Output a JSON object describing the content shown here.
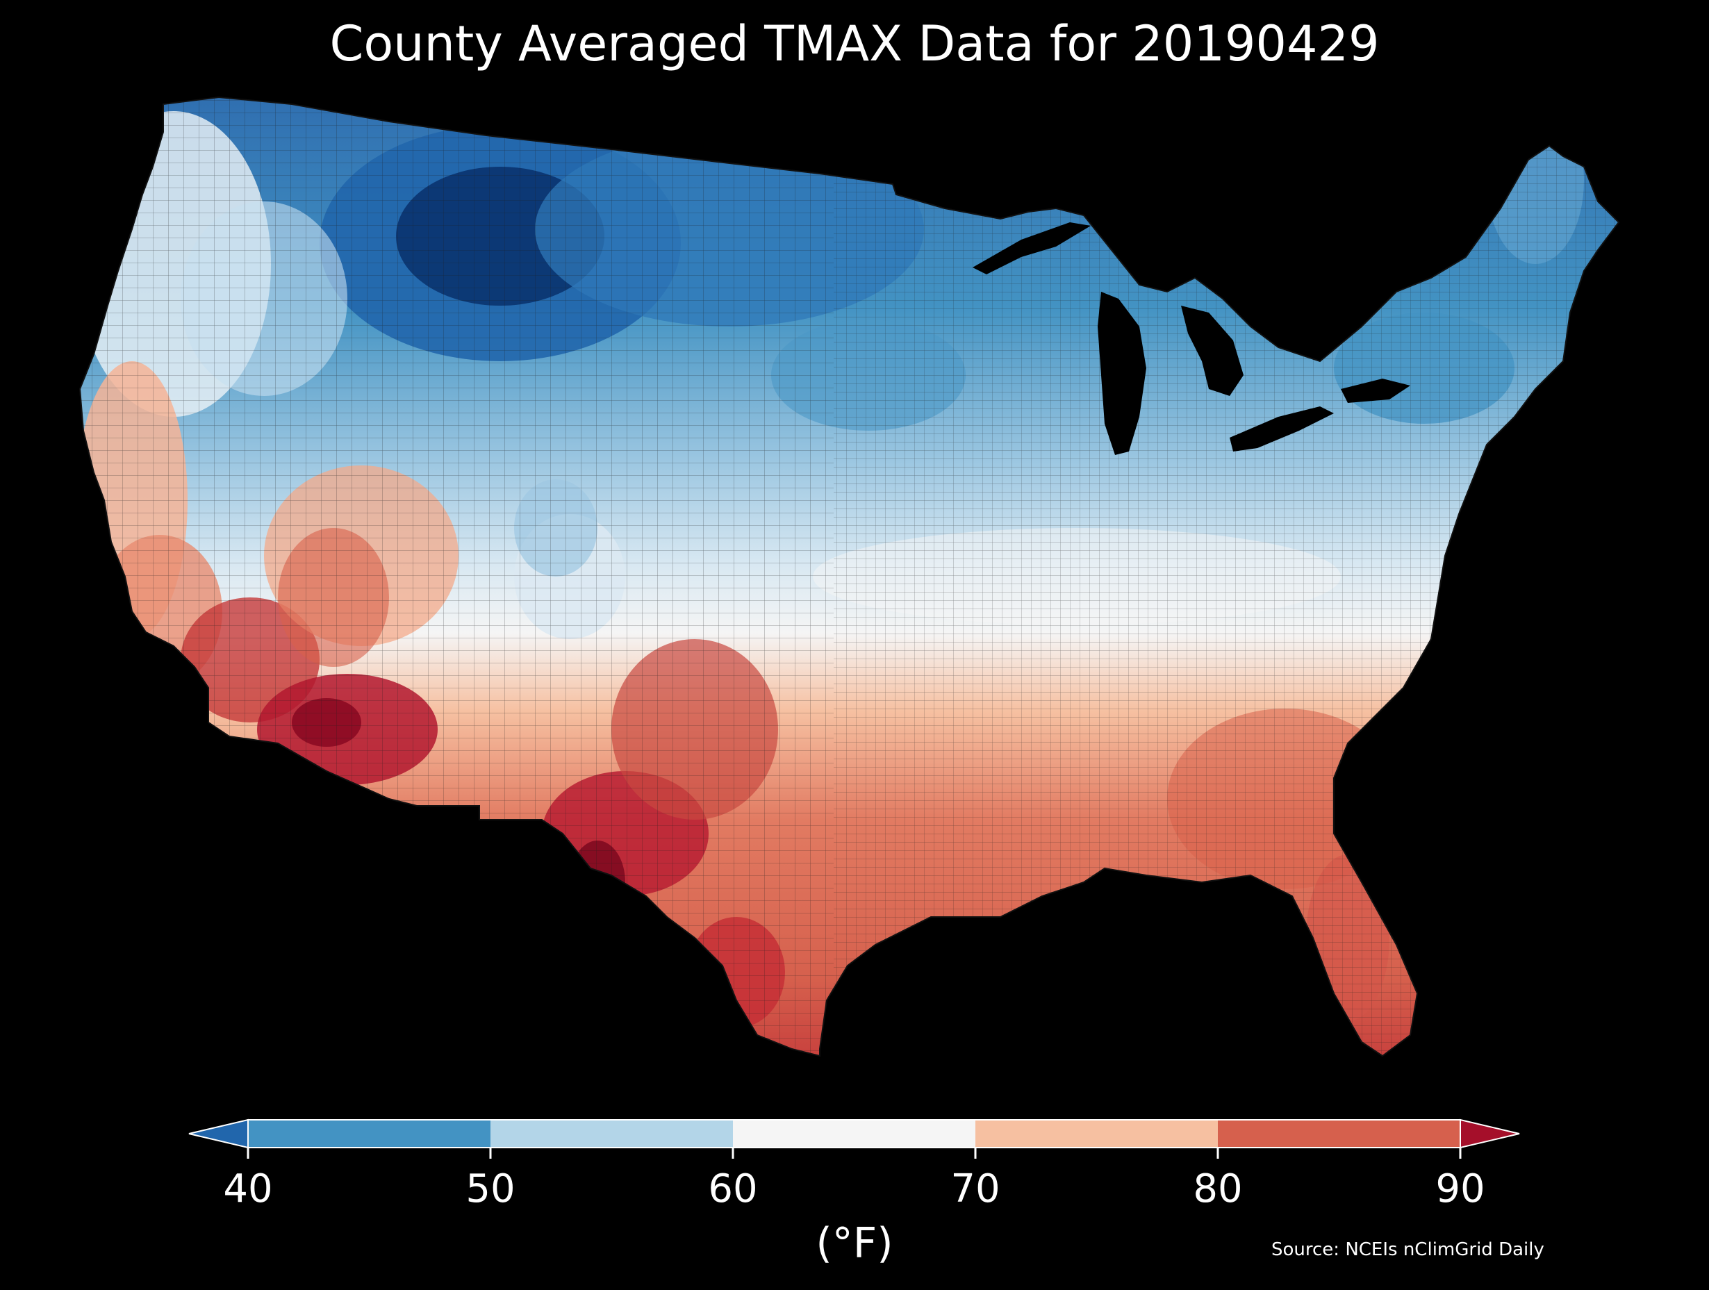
{
  "title": "County Averaged TMAX Data for 20190429",
  "source": "Source: NCEIs nClimGrid Daily",
  "colorbar": {
    "label": "(°F)",
    "ticks": [
      "40",
      "50",
      "60",
      "70",
      "80",
      "90"
    ],
    "bins": [
      {
        "range": "<40",
        "color": "#2166ac"
      },
      {
        "range": "40-50",
        "color": "#4393c3"
      },
      {
        "range": "50-60",
        "color": "#b3d5e8"
      },
      {
        "range": "60-70",
        "color": "#f5f5f5"
      },
      {
        "range": "70-80",
        "color": "#f6c0a1"
      },
      {
        "range": "80-90",
        "color": "#d6604d"
      },
      {
        "range": ">90",
        "color": "#a50f2a"
      }
    ]
  },
  "map": {
    "subject": "Contiguous United States county-level maximum temperature",
    "gradient_summary": "Cool blues across northern plains, Rockies and Great Lakes; warm reds across the South, Southwest and Texas",
    "colors": {
      "background": "#000000",
      "very_cold": "#08306b",
      "cold": "#2166ac",
      "cool": "#4393c3",
      "mild_cool": "#b3d5e8",
      "neutral": "#f5f5f5",
      "mild_warm": "#f6c0a1",
      "warm": "#d6604d",
      "hot": "#a50f2a",
      "county_border": "#222222"
    }
  }
}
